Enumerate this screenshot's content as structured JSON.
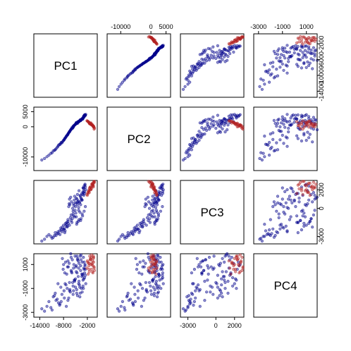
{
  "chart_data": {
    "type": "scatter",
    "variables": [
      "PC1",
      "PC2",
      "PC3",
      "PC4"
    ],
    "ranges": {
      "PC1": [
        -15500,
        500
      ],
      "PC2": [
        -14500,
        6500
      ],
      "PC3": [
        -3800,
        3000
      ],
      "PC4": [
        -3400,
        1900
      ]
    },
    "ticks": {
      "PC1": [
        -14000,
        -8000,
        -2000
      ],
      "PC2": [
        -10000,
        0,
        5000
      ],
      "PC3": [
        -3000,
        0,
        2000
      ],
      "PC4": [
        -3000,
        -1000,
        1000
      ]
    },
    "tick_labels": {
      "PC1": [
        "-14000",
        "-8000",
        "-2000"
      ],
      "PC2": [
        "-10000",
        "0",
        "5000"
      ],
      "PC3": [
        "-3000",
        "0",
        "2000"
      ],
      "PC4": [
        "-3000",
        "-1000",
        "1000"
      ]
    },
    "axis_ticks_top": {
      "PC2": [
        -10000,
        0,
        5000
      ],
      "PC4": [
        -3000,
        -1000,
        1000
      ]
    },
    "axis_tick_labels_top": {
      "PC2": [
        "-10000",
        "0",
        "5000"
      ],
      "PC4": [
        "-3000",
        "-1000",
        "1000"
      ]
    },
    "axis_ticks_right": {
      "PC1": [
        -14000,
        -10000,
        -6000,
        -2000
      ]
    },
    "axis_tick_labels_right": {
      "PC1": [
        "-14000",
        "-10000",
        "-6000",
        "-2000"
      ]
    },
    "axis_ticks_left_PC2": [
      -10000,
      0,
      5000
    ],
    "axis_tick_labels_left_PC2": [
      "-10000",
      "0",
      "5000"
    ],
    "axis_ticks_right_PC3": [
      -3000,
      0,
      2000
    ],
    "axis_tick_labels_right_PC3": [
      "-3000",
      "0",
      "2000"
    ],
    "axis_ticks_left_PC4": [
      -3000,
      -1000,
      1000
    ],
    "axis_tick_labels_left_PC4": [
      "-3000",
      "-1000",
      "1000"
    ],
    "axis_ticks_bottom": {
      "PC1": [
        -14000,
        -8000,
        -2000
      ],
      "PC3": [
        -3000,
        0,
        2000
      ]
    },
    "axis_tick_labels_bottom": {
      "PC1": [
        "-14000",
        "-8000",
        "-2000"
      ],
      "PC3": [
        "-3000",
        "0",
        "2000"
      ]
    },
    "series": [
      {
        "color": "#00008B",
        "points": [
          [
            -3200,
            2500,
            -800,
            200
          ],
          [
            -4100,
            1800,
            -1200,
            -400
          ],
          [
            -2800,
            3200,
            -300,
            600
          ],
          [
            -6500,
            -1500,
            -1800,
            -1200
          ],
          [
            -5200,
            600,
            -900,
            -300
          ],
          [
            -3700,
            2100,
            400,
            900
          ],
          [
            -7800,
            -4200,
            -2200,
            -1800
          ],
          [
            -4600,
            1200,
            -1500,
            300
          ],
          [
            -2500,
            3800,
            200,
            100
          ],
          [
            -9300,
            -6100,
            -2700,
            -2200
          ],
          [
            -5600,
            -200,
            -600,
            -800
          ],
          [
            -3300,
            2700,
            900,
            1200
          ],
          [
            -6100,
            -900,
            -1300,
            500
          ],
          [
            -4200,
            1600,
            100,
            -600
          ],
          [
            -11200,
            -8800,
            -3000,
            -2600
          ],
          [
            -2900,
            3500,
            1400,
            700
          ],
          [
            -7100,
            -2800,
            -2000,
            -1000
          ],
          [
            -5000,
            900,
            600,
            -200
          ],
          [
            -3600,
            2300,
            -1100,
            1400
          ],
          [
            -8400,
            -5300,
            -2500,
            -1500
          ],
          [
            -4800,
            1400,
            1100,
            400
          ],
          [
            -2700,
            3900,
            1800,
            -100
          ],
          [
            -6800,
            -2200,
            -1600,
            800
          ],
          [
            -3900,
            2000,
            -400,
            -900
          ],
          [
            -9900,
            -7300,
            -2900,
            -2000
          ],
          [
            -5400,
            300,
            300,
            1000
          ],
          [
            -3100,
            2900,
            2200,
            -300
          ],
          [
            -7400,
            -3400,
            -1900,
            -700
          ],
          [
            -4400,
            1700,
            700,
            1500
          ],
          [
            -12800,
            -10500,
            -3300,
            -2900
          ],
          [
            -6300,
            -1200,
            -1000,
            -1300
          ],
          [
            -3400,
            2600,
            1600,
            200
          ],
          [
            -8100,
            -4700,
            -2300,
            600
          ],
          [
            -5700,
            -500,
            0,
            -500
          ],
          [
            -2600,
            3700,
            2500,
            900
          ],
          [
            -10600,
            -8000,
            -3100,
            -1700
          ],
          [
            -4700,
            1300,
            -1700,
            -1100
          ],
          [
            -6600,
            -1800,
            500,
            1100
          ],
          [
            -3800,
            2200,
            1300,
            -1400
          ],
          [
            -7700,
            -3900,
            -2600,
            300
          ],
          [
            -5100,
            700,
            -200,
            1700
          ],
          [
            -2400,
            4100,
            2000,
            -600
          ],
          [
            -9000,
            -5800,
            -2400,
            -2400
          ],
          [
            -4300,
            1500,
            800,
            0
          ],
          [
            -6900,
            -2500,
            -1400,
            1300
          ],
          [
            -3500,
            2400,
            1000,
            -1000
          ],
          [
            -11700,
            -9400,
            -2800,
            -2100
          ],
          [
            -5500,
            100,
            -800,
            700
          ],
          [
            -3000,
            3100,
            1700,
            1600
          ],
          [
            -8700,
            -5500,
            -2100,
            -900
          ],
          [
            -4500,
            1100,
            400,
            -1600
          ],
          [
            -6200,
            -1000,
            1200,
            1900
          ],
          [
            -3700,
            2000,
            -1300,
            500
          ],
          [
            -7300,
            -3100,
            -1700,
            -2500
          ],
          [
            -5300,
            500,
            900,
            -300
          ],
          [
            -2800,
            3400,
            2400,
            1200
          ],
          [
            -10100,
            -7600,
            -2600,
            -1400
          ],
          [
            -4900,
            1000,
            -500,
            800
          ],
          [
            -6700,
            -2000,
            200,
            -1800
          ],
          [
            -3200,
            2800,
            1500,
            100
          ],
          [
            -8000,
            -4500,
            -1800,
            1000
          ],
          [
            -4000,
            1900,
            600,
            -700
          ],
          [
            -13500,
            -11000,
            -3500,
            -2700
          ],
          [
            -5800,
            -400,
            -1100,
            1400
          ],
          [
            -2900,
            3600,
            2100,
            -200
          ],
          [
            -7600,
            -3700,
            -2400,
            -600
          ],
          [
            -4600,
            1200,
            1000,
            1700
          ],
          [
            -9600,
            -6800,
            -2700,
            -1900
          ],
          [
            -3300,
            2500,
            -600,
            -1300
          ],
          [
            -6000,
            -700,
            700,
            400
          ],
          [
            -4100,
            1700,
            1900,
            1100
          ],
          [
            -8900,
            -5900,
            -2800,
            -2300
          ],
          [
            -5600,
            200,
            -300,
            -1500
          ],
          [
            -3600,
            2200,
            1100,
            1800
          ],
          [
            -7200,
            -3000,
            -1500,
            200
          ],
          [
            -2500,
            3800,
            2300,
            600
          ],
          [
            -10900,
            -8600,
            -3200,
            -2800
          ],
          [
            -4800,
            1300,
            -900,
            900
          ],
          [
            -6400,
            -1500,
            400,
            -1100
          ],
          [
            -3100,
            2700,
            1800,
            -800
          ],
          [
            -8300,
            -5000,
            -2000,
            1500
          ],
          [
            -5200,
            600,
            1300,
            -400
          ],
          [
            -4300,
            1600,
            -1400,
            1300
          ],
          [
            -7900,
            -4300,
            -2200,
            -1200
          ],
          [
            -3900,
            2100,
            700,
            -1700
          ],
          [
            -6100,
            -800,
            -700,
            1600
          ],
          [
            -12200,
            -9900,
            -3000,
            -2500
          ],
          [
            -2700,
            3900,
            1600,
            300
          ],
          [
            -5000,
            800,
            200,
            -900
          ],
          [
            -9400,
            -6500,
            -2500,
            -600
          ],
          [
            -4500,
            1400,
            1500,
            1400
          ],
          [
            -6900,
            -2400,
            -1200,
            -2000
          ],
          [
            -3400,
            2600,
            900,
            0
          ],
          [
            -7500,
            -3600,
            -1600,
            1200
          ],
          [
            -5500,
            0,
            500,
            -1200
          ],
          [
            -2600,
            4000,
            2600,
            1000
          ],
          [
            -8600,
            -5200,
            -2300,
            -2100
          ],
          [
            -4200,
            1800,
            -200,
            700
          ],
          [
            -6500,
            -1700,
            1000,
            -500
          ],
          [
            -3800,
            2300,
            1400,
            1700
          ],
          [
            -10300,
            -7800,
            -2900,
            -1600
          ],
          [
            -5900,
            -300,
            -1500,
            300
          ],
          [
            -3000,
            3300,
            2200,
            -1000
          ],
          [
            -7000,
            -2700,
            -1900,
            800
          ],
          [
            -4700,
            1100,
            600,
            -1400
          ]
        ]
      },
      {
        "color": "#B22222",
        "points": [
          [
            -1200,
            1200,
            2300,
            1400
          ],
          [
            -800,
            600,
            2600,
            1100
          ],
          [
            -1600,
            1500,
            1900,
            900
          ],
          [
            -400,
            200,
            2800,
            1600
          ],
          [
            -1000,
            800,
            2100,
            600
          ],
          [
            -1900,
            1800,
            1700,
            1200
          ],
          [
            -600,
            400,
            2500,
            300
          ],
          [
            -1400,
            1000,
            2200,
            1700
          ],
          [
            -300,
            -200,
            2900,
            800
          ],
          [
            -1100,
            1300,
            2000,
            1000
          ],
          [
            -700,
            500,
            2700,
            1300
          ],
          [
            -2100,
            2000,
            1500,
            700
          ],
          [
            -500,
            100,
            2400,
            1500
          ],
          [
            -1500,
            1100,
            2100,
            400
          ],
          [
            -900,
            700,
            2600,
            1800
          ],
          [
            -1700,
            1600,
            1800,
            1100
          ],
          [
            -200,
            -500,
            2800,
            500
          ],
          [
            -1300,
            900,
            2300,
            1400
          ],
          [
            -600,
            300,
            2500,
            900
          ],
          [
            -1800,
            1700,
            1600,
            200
          ],
          [
            -1000,
            600,
            2200,
            1600
          ],
          [
            -400,
            -100,
            2700,
            1200
          ],
          [
            -1600,
            1400,
            1900,
            600
          ],
          [
            -800,
            800,
            2400,
            1000
          ],
          [
            -2000,
            1900,
            1400,
            1300
          ],
          [
            -300,
            -800,
            2900,
            700
          ],
          [
            -1200,
            1000,
            2000,
            1500
          ],
          [
            -700,
            400,
            2600,
            400
          ],
          [
            -1500,
            1200,
            1700,
            1100
          ],
          [
            -500,
            0,
            2300,
            1700
          ]
        ]
      }
    ]
  }
}
